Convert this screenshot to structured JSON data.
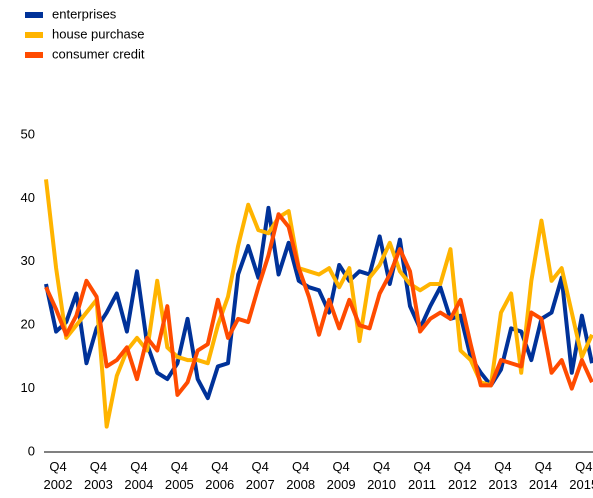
{
  "chart_data": {
    "type": "line",
    "categories": [
      "Q4 2002",
      null,
      null,
      null,
      "Q4 2003",
      null,
      null,
      null,
      "Q4 2004",
      null,
      null,
      null,
      "Q4 2005",
      null,
      null,
      null,
      "Q4 2006",
      null,
      null,
      null,
      "Q4 2007",
      null,
      null,
      null,
      "Q4 2008",
      null,
      null,
      null,
      "Q4 2009",
      null,
      null,
      null,
      "Q4 2010",
      null,
      null,
      null,
      "Q4 2011",
      null,
      null,
      null,
      "Q4 2012",
      null,
      null,
      null,
      "Q4 2013",
      null,
      null,
      null,
      "Q4 2014",
      null,
      null,
      null,
      "Q4 2015",
      null,
      null
    ],
    "series": [
      {
        "name": "enterprises",
        "color": "#003299",
        "values": [
          26.5,
          19,
          20.5,
          25,
          14,
          19.5,
          22,
          25,
          19,
          28.5,
          17,
          12.5,
          11.5,
          14,
          21,
          11.5,
          8.5,
          13.5,
          14,
          28,
          32.5,
          27.5,
          38.5,
          28,
          33,
          27,
          26,
          25.5,
          22,
          29.5,
          27,
          28.5,
          28,
          34,
          26.5,
          33.5,
          23,
          19.5,
          23,
          26,
          21,
          21.5,
          15,
          12.5,
          10.5,
          13,
          19.5,
          19,
          14.5,
          21,
          22,
          27.5,
          12.5,
          21.5,
          14
        ]
      },
      {
        "name": "house purchase",
        "color": "#ffb400",
        "values": [
          43,
          29,
          18,
          20,
          22,
          24,
          4,
          12,
          16,
          18,
          16,
          27,
          16.5,
          15,
          14.5,
          14.5,
          14,
          20,
          24.5,
          32.5,
          39,
          35,
          34.5,
          37,
          38,
          29,
          28.5,
          28,
          29,
          26,
          29,
          17.5,
          27.5,
          29.5,
          33,
          28.5,
          26.5,
          25.5,
          26.5,
          26.5,
          32,
          16,
          14.5,
          11,
          10.5,
          22,
          25,
          12.5,
          27,
          36.5,
          27,
          29,
          22,
          15,
          18.5
        ]
      },
      {
        "name": "consumer credit",
        "color": "#ff4b00",
        "values": [
          26,
          22.5,
          18.5,
          21.5,
          27,
          24.5,
          13.5,
          14.5,
          16.5,
          11.5,
          18,
          16,
          23,
          9,
          11,
          16,
          17,
          24,
          18,
          21,
          20.5,
          26,
          31,
          37.5,
          35.5,
          29,
          24.5,
          18.5,
          24,
          19.5,
          24,
          20,
          19.5,
          25,
          28,
          32,
          28.5,
          19,
          21,
          22,
          21,
          24,
          17,
          10.5,
          10.5,
          14.5,
          14,
          13.5,
          22,
          21,
          12.5,
          14.5,
          10,
          14.5,
          11
        ]
      }
    ],
    "ylim": [
      0,
      50
    ],
    "yticks": [
      0,
      10,
      20,
      30,
      40,
      50
    ],
    "legend": "top-left"
  }
}
